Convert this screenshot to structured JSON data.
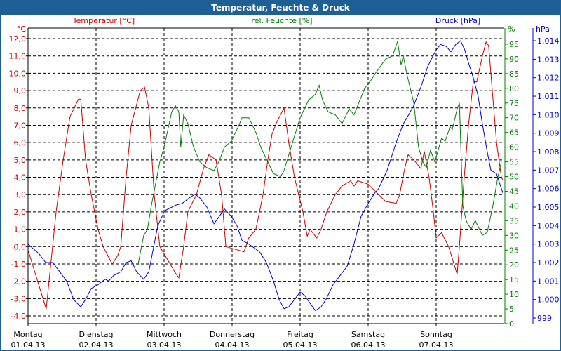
{
  "window_title": "Temperatur, Feuchte & Druck",
  "colors": {
    "temperature": "#cc0000",
    "humidity": "#008000",
    "pressure": "#0000cc",
    "titlebar": "#1e5f96"
  },
  "chart_data": {
    "type": "line",
    "title": "Temperatur, Feuchte & Druck",
    "xlabel": "",
    "x_unit": "hours since 01.04.13 00:00",
    "xlim": [
      0,
      168
    ],
    "x_ticks": [
      {
        "day": "Montag",
        "date": "01.04.13"
      },
      {
        "day": "Dienstag",
        "date": "02.04.13"
      },
      {
        "day": "Mittwoch",
        "date": "03.04.13"
      },
      {
        "day": "Donnerstag",
        "date": "04.04.13"
      },
      {
        "day": "Freitag",
        "date": "05.04.13"
      },
      {
        "day": "Samstag",
        "date": "06.04.13"
      },
      {
        "day": "Sonntag",
        "date": "07.04.13"
      }
    ],
    "grid": true,
    "axes": {
      "temperature": {
        "legend": "Temperatur [°C]",
        "unit": "°C",
        "ylim": [
          -4.6,
          12.6
        ],
        "ticks": [
          "12,0",
          "11,0",
          "10,0",
          "9,0",
          "8,0",
          "7,0",
          "6,0",
          "5,0",
          "4,0",
          "3,0",
          "2,0",
          "1,0",
          "0,0",
          "-1,0",
          "-2,0",
          "-3,0",
          "-4,0"
        ]
      },
      "humidity": {
        "legend": "rel. Feuchte [%]",
        "unit": "%",
        "ylim": [
          0,
          95
        ],
        "ticks": [
          "95",
          "90",
          "85",
          "80",
          "75",
          "70",
          "65",
          "60",
          "55",
          "50",
          "45",
          "40",
          "35",
          "30",
          "25",
          "20",
          "15",
          "10",
          "5",
          "0"
        ]
      },
      "pressure": {
        "legend": "Druck [hPa]",
        "unit": "hPa",
        "ylim": [
          999,
          1014
        ],
        "ticks": [
          "1.014",
          "1.013",
          "1.012",
          "1.011",
          "1.010",
          "1.009",
          "1.008",
          "1.007",
          "1.006",
          "1.005",
          "1.004",
          "1.003",
          "1.002",
          "1.001",
          "1.000",
          "999"
        ]
      }
    },
    "series": [
      {
        "name": "Temperatur [°C]",
        "axis": "temperature",
        "points": [
          [
            0,
            -0.2
          ],
          [
            6.4,
            -3.6
          ],
          [
            9.9,
            2
          ],
          [
            12.4,
            5
          ],
          [
            14.8,
            7.5
          ],
          [
            17.8,
            8.5
          ],
          [
            18.6,
            8.5
          ],
          [
            20.3,
            5
          ],
          [
            22.3,
            3
          ],
          [
            24.7,
            1
          ],
          [
            26.5,
            0
          ],
          [
            29.7,
            -1
          ],
          [
            31.7,
            -0.5
          ],
          [
            32.7,
            0
          ],
          [
            34.6,
            4
          ],
          [
            36.4,
            7
          ],
          [
            39.6,
            9
          ],
          [
            41.1,
            9.2
          ],
          [
            42.6,
            8
          ],
          [
            44.5,
            3
          ],
          [
            46.5,
            0
          ],
          [
            51.9,
            -1.5
          ],
          [
            53.2,
            -1.8
          ],
          [
            54.9,
            0
          ],
          [
            56.4,
            2
          ],
          [
            59.4,
            3
          ],
          [
            61.9,
            4.5
          ],
          [
            63.8,
            5.3
          ],
          [
            66.3,
            5
          ],
          [
            68.3,
            3
          ],
          [
            69.8,
            0
          ],
          [
            76.2,
            -0.3
          ],
          [
            77.9,
            0.5
          ],
          [
            80.4,
            1
          ],
          [
            82.9,
            3
          ],
          [
            84.6,
            5
          ],
          [
            86.1,
            6.5
          ],
          [
            87.8,
            7.2
          ],
          [
            90.3,
            8
          ],
          [
            92.0,
            6
          ],
          [
            94.0,
            4
          ],
          [
            97.0,
            2
          ],
          [
            98.5,
            0.6
          ],
          [
            99.5,
            1
          ],
          [
            101.9,
            0.5
          ],
          [
            103.4,
            1
          ],
          [
            105.4,
            2
          ],
          [
            108.4,
            3
          ],
          [
            110.8,
            3.5
          ],
          [
            113.8,
            3.8
          ],
          [
            115.0,
            3.5
          ],
          [
            116.3,
            3.8
          ],
          [
            120.0,
            3.6
          ],
          [
            123.7,
            3
          ],
          [
            126.2,
            2.6
          ],
          [
            129.9,
            2.5
          ],
          [
            131.1,
            3
          ],
          [
            132.9,
            4.5
          ],
          [
            134.1,
            5.3
          ],
          [
            136.1,
            5
          ],
          [
            138.6,
            4.5
          ],
          [
            139.8,
            5.5
          ],
          [
            141.5,
            4
          ],
          [
            143.0,
            2
          ],
          [
            144.0,
            0.5
          ],
          [
            145.9,
            0.8
          ],
          [
            148.4,
            0
          ],
          [
            151.4,
            -1.6
          ],
          [
            152.2,
            0
          ],
          [
            153.9,
            4
          ],
          [
            155.4,
            7
          ],
          [
            157.1,
            9.5
          ],
          [
            158.3,
            9.5
          ],
          [
            160.3,
            11
          ],
          [
            161.6,
            11.8
          ],
          [
            162.5,
            11.6
          ],
          [
            163.8,
            9
          ],
          [
            165.3,
            6
          ],
          [
            167.0,
            4
          ],
          [
            167.7,
            3.8
          ]
        ]
      },
      {
        "name": "rel. Feuchte [%]",
        "axis": "humidity",
        "points": [
          [
            38.8,
            20
          ],
          [
            40.8,
            30
          ],
          [
            42.1,
            32
          ],
          [
            43.5,
            40
          ],
          [
            46.5,
            55
          ],
          [
            48,
            60
          ],
          [
            50.7,
            72
          ],
          [
            52,
            74
          ],
          [
            53.2,
            72
          ],
          [
            53.9,
            60
          ],
          [
            54.9,
            71
          ],
          [
            56.4,
            68
          ],
          [
            58.4,
            60
          ],
          [
            60.6,
            55
          ],
          [
            63.1,
            53
          ],
          [
            65.6,
            52
          ],
          [
            67.3,
            55
          ],
          [
            69.3,
            60
          ],
          [
            71.7,
            62
          ],
          [
            74.2,
            67
          ],
          [
            75.5,
            70
          ],
          [
            77.9,
            70
          ],
          [
            80.4,
            65
          ],
          [
            82.1,
            60
          ],
          [
            84.6,
            55
          ],
          [
            86.6,
            51
          ],
          [
            89.1,
            50
          ],
          [
            90.3,
            52
          ],
          [
            92.8,
            60
          ],
          [
            96,
            70
          ],
          [
            99,
            76
          ],
          [
            101.4,
            78
          ],
          [
            102.7,
            81
          ],
          [
            103.9,
            76
          ],
          [
            105.9,
            72
          ],
          [
            108.4,
            71
          ],
          [
            110.8,
            68
          ],
          [
            113.3,
            73
          ],
          [
            115,
            71
          ],
          [
            118.8,
            80
          ],
          [
            121.2,
            83
          ],
          [
            122.5,
            85
          ],
          [
            126.2,
            90
          ],
          [
            128.6,
            91
          ],
          [
            130.4,
            96
          ],
          [
            131.6,
            88
          ],
          [
            132.4,
            91
          ],
          [
            133.6,
            85
          ],
          [
            136.1,
            75
          ],
          [
            137.8,
            60
          ],
          [
            139.3,
            55
          ],
          [
            140.5,
            53
          ],
          [
            142,
            59
          ],
          [
            143.5,
            55
          ],
          [
            145.9,
            63
          ],
          [
            147.2,
            62
          ],
          [
            148.9,
            67
          ],
          [
            149.7,
            66
          ],
          [
            151.4,
            73
          ],
          [
            152.2,
            75
          ],
          [
            153.4,
            40
          ],
          [
            154.6,
            35
          ],
          [
            156.3,
            32
          ],
          [
            157.8,
            35
          ],
          [
            160.3,
            30
          ],
          [
            162,
            31
          ],
          [
            164,
            40
          ],
          [
            165.8,
            50
          ],
          [
            167,
            55
          ]
        ]
      },
      {
        "name": "Druck [hPa]",
        "axis": "pressure",
        "points": [
          [
            0,
            1003
          ],
          [
            3.7,
            1002.5
          ],
          [
            6.2,
            1002
          ],
          [
            8.7,
            1002
          ],
          [
            13.6,
            1001
          ],
          [
            16.1,
            1000
          ],
          [
            18.6,
            999.6
          ],
          [
            20.3,
            1000
          ],
          [
            22.3,
            1000.6
          ],
          [
            24.7,
            1000.8
          ],
          [
            27.2,
            1001.1
          ],
          [
            28.5,
            1001
          ],
          [
            30.2,
            1001.3
          ],
          [
            32.7,
            1001.5
          ],
          [
            34.6,
            1002
          ],
          [
            36.4,
            1002.1
          ],
          [
            38.3,
            1001.5
          ],
          [
            40.8,
            1001.1
          ],
          [
            42.6,
            1001.5
          ],
          [
            44.5,
            1003
          ],
          [
            45.8,
            1004
          ],
          [
            48.2,
            1004.8
          ],
          [
            52,
            1005.1
          ],
          [
            54.4,
            1005.2
          ],
          [
            56.9,
            1005.5
          ],
          [
            58.9,
            1005.7
          ],
          [
            60.6,
            1005.5
          ],
          [
            63.1,
            1005
          ],
          [
            65.6,
            1004.1
          ],
          [
            67.5,
            1004.5
          ],
          [
            69.3,
            1004.9
          ],
          [
            71.7,
            1004.5
          ],
          [
            73.7,
            1004
          ],
          [
            75.5,
            1003.2
          ],
          [
            77.9,
            1003
          ],
          [
            79.7,
            1002.8
          ],
          [
            81.6,
            1002.6
          ],
          [
            84.1,
            1002
          ],
          [
            86.6,
            1001
          ],
          [
            88.6,
            1000
          ],
          [
            90.3,
            999.5
          ],
          [
            92,
            999.6
          ],
          [
            94,
            1000
          ],
          [
            96,
            1000.4
          ],
          [
            97.7,
            1000.2
          ],
          [
            99.5,
            999.8
          ],
          [
            101.4,
            999.4
          ],
          [
            103.4,
            999.6
          ],
          [
            105.1,
            1000
          ],
          [
            107.6,
            1000.8
          ],
          [
            110.1,
            1001.3
          ],
          [
            112.6,
            1001.8
          ],
          [
            115,
            1003
          ],
          [
            117.5,
            1004.5
          ],
          [
            120,
            1005.2
          ],
          [
            122.5,
            1005.8
          ],
          [
            123.7,
            1006
          ],
          [
            126.7,
            1007
          ],
          [
            129.9,
            1008.5
          ],
          [
            132.4,
            1009.5
          ],
          [
            134.3,
            1010
          ],
          [
            136.1,
            1010.5
          ],
          [
            138.6,
            1011.5
          ],
          [
            141,
            1012.6
          ],
          [
            142.3,
            1013
          ],
          [
            144,
            1013.5
          ],
          [
            145.5,
            1013.8
          ],
          [
            147.5,
            1013.7
          ],
          [
            149.2,
            1013.4
          ],
          [
            150.9,
            1013.8
          ],
          [
            152.6,
            1014
          ],
          [
            154.1,
            1013.5
          ],
          [
            155.4,
            1012.8
          ],
          [
            157.1,
            1012
          ],
          [
            158.8,
            1011
          ],
          [
            160.3,
            1009.5
          ],
          [
            162,
            1008
          ],
          [
            163.3,
            1007
          ],
          [
            165.3,
            1006.8
          ],
          [
            167,
            1006
          ],
          [
            167.7,
            1005.7
          ]
        ]
      }
    ]
  }
}
